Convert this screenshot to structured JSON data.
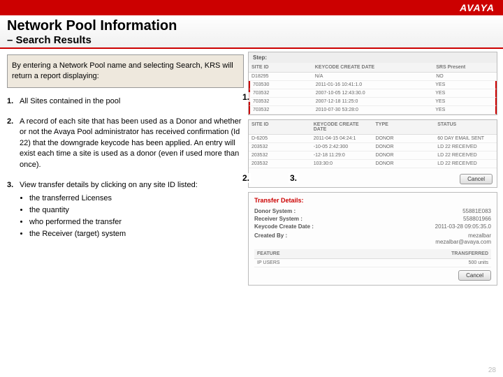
{
  "brand": "AVAYA",
  "title": "Network Pool Information",
  "subtitle": "– Search Results",
  "intro": "By entering a Network Pool name and selecting Search, KRS will return a report displaying:",
  "items": [
    {
      "num": "1.",
      "text": "All Sites contained in the pool"
    },
    {
      "num": "2.",
      "text": "A record of each site that has been used as a Donor and whether or not the Avaya Pool administrator has received confirmation (Id 22) that the downgrade keycode has been applied. An entry will exist each time a site is used as a donor (even if used more than once)."
    },
    {
      "num": "3.",
      "text": "View transfer details by clicking on any site ID listed:"
    }
  ],
  "bullets": [
    "the transferred Licenses",
    "the quantity",
    "who performed the transfer",
    "the Receiver (target) system"
  ],
  "panel1": {
    "step": "Step:",
    "headers": [
      "SITE ID",
      "KEYCODE CREATE DATE",
      "",
      "SRS Present"
    ],
    "rows": [
      [
        "D18295",
        "N/A",
        "",
        "NO"
      ],
      [
        "703530",
        "2011-01-16 10:41:1.0",
        "",
        "YES"
      ],
      [
        "703532",
        "2007-10-05 12:43:30.0",
        "",
        "YES"
      ],
      [
        "703532",
        "2007-12-18 11:25:0",
        "",
        "YES"
      ],
      [
        "703532",
        "2010-07-30 53:28:0",
        "",
        "YES"
      ]
    ]
  },
  "panel2": {
    "headers": [
      "SITE ID",
      "KEYCODE CREATE DATE",
      "TYPE",
      "STATUS"
    ],
    "rows": [
      [
        "D-6205",
        "2011-04-15 04:24:1",
        "DONOR",
        "60 DAY EMAIL SENT"
      ],
      [
        "203532",
        "-10-05 2:42:300",
        "DONOR",
        "LD 22 RECEIVED"
      ],
      [
        "203532",
        "-12-18 11:29:0",
        "DONOR",
        "LD 22 RECEIVED"
      ],
      [
        "203532",
        "103:30:0",
        "DONOR",
        "LD 22 RECEIVED"
      ]
    ]
  },
  "cancel": "Cancel",
  "details": {
    "title": "Transfer Details:",
    "donor_lbl": "Donor System :",
    "donor_val": "55881E083",
    "recv_lbl": "Receiver System :",
    "recv_val": "558801966",
    "kcd_lbl": "Keycode Create Date :",
    "kcd_val": "2011-03-28 09:05:35.0",
    "by_lbl": "Created By :",
    "by_val1": "mezalbar",
    "by_val2": "mezalbar@avaya.com",
    "feat": "FEATURE",
    "trans": "TRANSFERRED",
    "ip": "IP USERS",
    "units": "500 units"
  },
  "callouts": {
    "c1": "1.",
    "c2": "2.",
    "c3": "3."
  },
  "pagenum": "28"
}
